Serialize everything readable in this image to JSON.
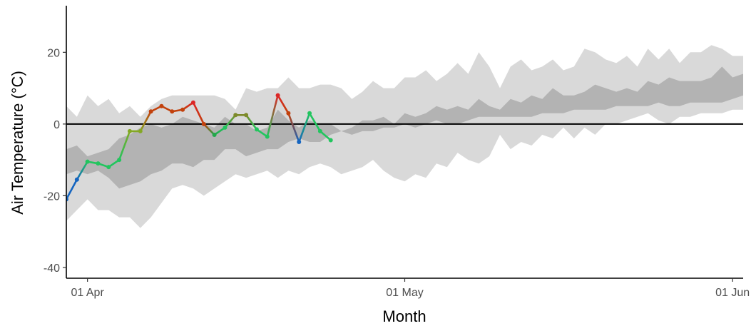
{
  "chart_data": {
    "type": "line",
    "title": "",
    "xlabel": "Month",
    "ylabel": "Air Temperature (°C)",
    "x_ticks": [
      {
        "day": 8,
        "label": "01 Apr"
      },
      {
        "day": 38,
        "label": "01 May"
      },
      {
        "day": 69,
        "label": "01 Jun"
      }
    ],
    "y_ticks": [
      -40,
      -20,
      0,
      20
    ],
    "xlim": [
      6,
      70
    ],
    "ylim": [
      -43,
      33
    ],
    "x": [
      "24 Mar",
      "25 Mar",
      "26 Mar",
      "27 Mar",
      "28 Mar",
      "29 Mar",
      "30 Mar",
      "31 Mar",
      "01 Apr",
      "02 Apr",
      "03 Apr",
      "04 Apr",
      "05 Apr",
      "06 Apr",
      "07 Apr",
      "08 Apr",
      "09 Apr",
      "10 Apr",
      "11 Apr",
      "12 Apr",
      "13 Apr",
      "14 Apr",
      "15 Apr",
      "16 Apr",
      "17 Apr",
      "18 Apr",
      "19 Apr",
      "20 Apr",
      "21 Apr",
      "22 Apr",
      "23 Apr",
      "24 Apr",
      "25 Apr",
      "26 Apr",
      "27 Apr",
      "28 Apr",
      "29 Apr",
      "30 Apr",
      "01 May",
      "02 May",
      "03 May",
      "04 May",
      "05 May",
      "06 May",
      "07 May",
      "08 May",
      "09 May",
      "10 May",
      "11 May",
      "12 May",
      "13 May",
      "14 May",
      "15 May",
      "16 May",
      "17 May",
      "18 May",
      "19 May",
      "20 May",
      "21 May",
      "22 May",
      "23 May",
      "24 May",
      "25 May",
      "26 May",
      "27 May",
      "28 May",
      "29 May",
      "30 May",
      "31 May",
      "01 Jun",
      "02 Jun"
    ],
    "series": [
      {
        "values": [
          null,
          null,
          null,
          null,
          null,
          null,
          -21,
          -15.5,
          -10.5,
          -11,
          -12,
          -10,
          -2,
          -2,
          3.5,
          5,
          3.5,
          4,
          6,
          0,
          -3,
          -1,
          2.5,
          2.5,
          -1.5,
          -3.5,
          8,
          3,
          -5,
          3,
          -2,
          -4.5,
          null,
          null,
          null,
          null,
          null,
          null,
          null,
          null,
          null,
          null,
          null,
          null,
          null,
          null,
          null,
          null,
          null,
          null,
          null,
          null,
          null,
          null,
          null,
          null,
          null,
          null,
          null,
          null,
          null,
          null,
          null,
          null,
          null,
          null,
          null,
          null,
          null,
          null,
          null
        ],
        "point_colors": [
          "",
          "",
          "",
          "",
          "",
          "",
          "#1565c0",
          "#1565c0",
          "#22c55e",
          "#22c55e",
          "#22c55e",
          "#22c55e",
          "#84a824",
          "#84a824",
          "#c2410c",
          "#c2410c",
          "#c2410c",
          "#c2410c",
          "#dc2626",
          "#c2410c",
          "#22a84a",
          "#22c55e",
          "#7d8a2a",
          "#7d8a2a",
          "#22c55e",
          "#22c55e",
          "#dc2626",
          "#c2410c",
          "#1565c0",
          "#22c55e",
          "#22c55e",
          "#22c55e",
          "",
          "",
          "",
          "",
          "",
          "",
          "",
          "",
          "",
          "",
          "",
          "",
          "",
          "",
          "",
          "",
          "",
          "",
          "",
          "",
          "",
          "",
          "",
          "",
          "",
          "",
          "",
          "",
          "",
          "",
          "",
          "",
          "",
          "",
          "",
          "",
          "",
          "",
          ""
        ]
      }
    ],
    "bands": [
      {
        "name": "outer",
        "color": "#d9d9d9",
        "upper": [
          null,
          null,
          null,
          null,
          null,
          null,
          5,
          2,
          8,
          5,
          7,
          3,
          5,
          2,
          5,
          7,
          8,
          8,
          8,
          8,
          8,
          7,
          4,
          10,
          9,
          10,
          10,
          13,
          10,
          10,
          11,
          11,
          10,
          7,
          9,
          12,
          10,
          10,
          13,
          13,
          15,
          12,
          14,
          17,
          14,
          20,
          16,
          10,
          16,
          18,
          15,
          16,
          18,
          15,
          16,
          21,
          20,
          18,
          17,
          19,
          16,
          21,
          18,
          21,
          17,
          20,
          20,
          22,
          21,
          19,
          19
        ],
        "lower": [
          null,
          null,
          null,
          null,
          null,
          null,
          -27,
          -24,
          -21,
          -24,
          -24,
          -26,
          -26,
          -29,
          -26,
          -22,
          -18,
          -17,
          -18,
          -20,
          -18,
          -16,
          -14,
          -15,
          -14,
          -13,
          -15,
          -13,
          -14,
          -12,
          -11,
          -12,
          -14,
          -13,
          -12,
          -10,
          -13,
          -15,
          -16,
          -14,
          -15,
          -11,
          -12,
          -8,
          -10,
          -11,
          -9,
          -3,
          -7,
          -5,
          -6,
          -3,
          -4,
          -1,
          -4,
          -1,
          -3,
          0,
          0,
          1,
          2,
          3,
          1,
          0,
          2,
          2,
          3,
          3,
          3,
          4,
          4
        ]
      },
      {
        "name": "inner",
        "color": "#b3b3b3",
        "upper": [
          null,
          null,
          null,
          null,
          null,
          null,
          -7,
          -6,
          -9,
          -8,
          -7,
          -4,
          -3,
          -1,
          0,
          -1,
          0,
          2,
          1,
          0,
          -1,
          2,
          0,
          0,
          -2,
          -1,
          4,
          1,
          -1,
          1,
          0,
          0,
          -2,
          -1,
          1,
          1,
          2,
          0,
          3,
          2,
          3,
          5,
          4,
          5,
          4,
          7,
          5,
          4,
          7,
          6,
          8,
          7,
          10,
          8,
          8,
          9,
          11,
          10,
          9,
          10,
          9,
          12,
          11,
          13,
          12,
          12,
          12,
          13,
          16,
          13,
          14
        ],
        "lower": [
          null,
          null,
          null,
          null,
          null,
          null,
          -14,
          -13,
          -14,
          -13,
          -15,
          -18,
          -17,
          -16,
          -14,
          -13,
          -11,
          -11,
          -12,
          -10,
          -10,
          -7,
          -7,
          -9,
          -8,
          -7,
          -7,
          -5,
          -4,
          -5,
          -5,
          -3,
          -2,
          -3,
          -2,
          -2,
          -1,
          -1,
          0,
          -1,
          0,
          1,
          0,
          0,
          1,
          2,
          2,
          2,
          2,
          2,
          2,
          3,
          3,
          3,
          4,
          4,
          4,
          4,
          5,
          5,
          5,
          5,
          6,
          5,
          5,
          6,
          6,
          6,
          6,
          7,
          8
        ]
      }
    ],
    "reference_line": {
      "y": 0,
      "color": "#000000"
    },
    "grid": false
  }
}
